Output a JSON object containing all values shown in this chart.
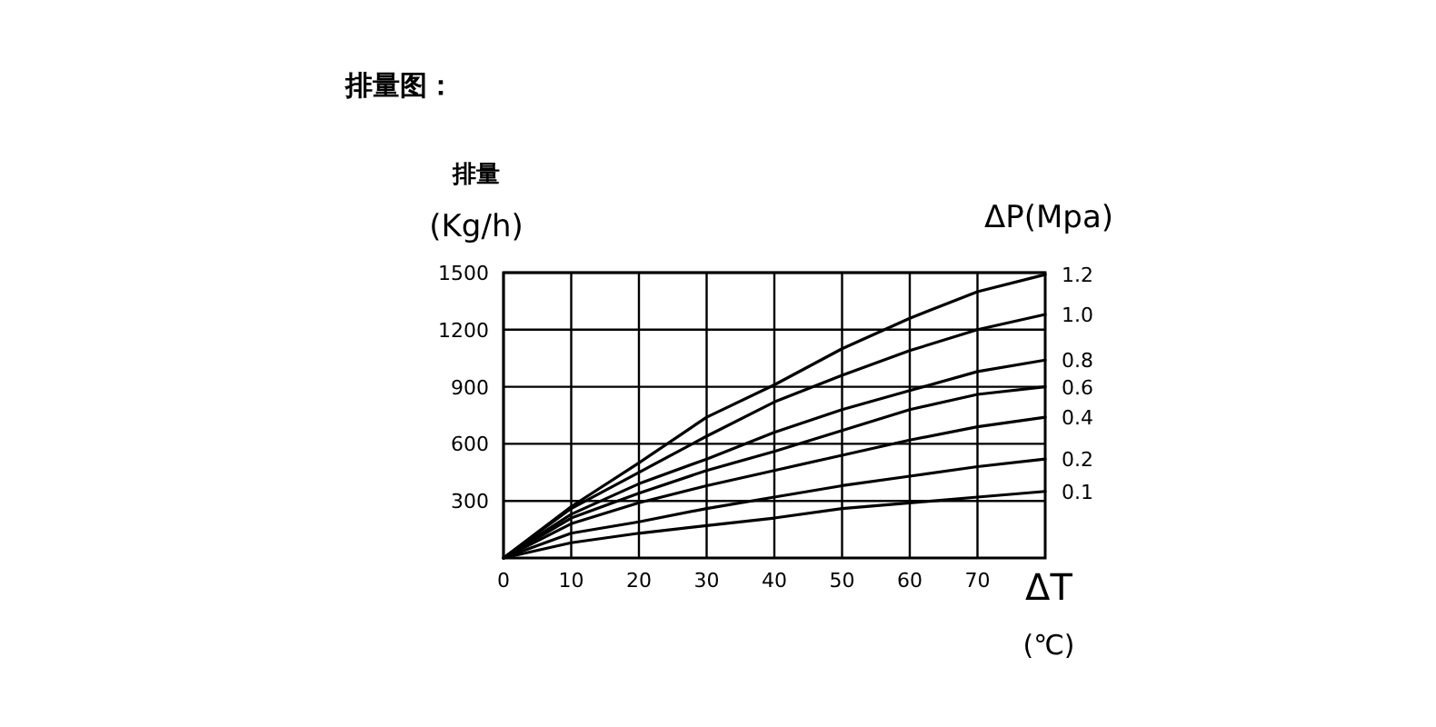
{
  "chart_data": {
    "type": "line",
    "title": "排量图：",
    "ylabel": "排量\n(Kg/h)",
    "xlabel": "ΔT\n(℃)",
    "legend_title": "ΔP(Mpa)",
    "x": [
      0,
      10,
      20,
      30,
      40,
      50,
      60,
      70,
      80
    ],
    "xlim": [
      0,
      80
    ],
    "xticks": [
      0,
      10,
      20,
      30,
      40,
      50,
      60,
      70
    ],
    "ylim": [
      0,
      1500
    ],
    "yticks": [
      300,
      600,
      900,
      1200,
      1500
    ],
    "grid": true,
    "marker": "none",
    "line_style": "solid",
    "series": [
      {
        "name": "1.2",
        "color": "#000000",
        "values": [
          0,
          270,
          500,
          740,
          910,
          1100,
          1260,
          1400,
          1490
        ]
      },
      {
        "name": "1.0",
        "color": "#000000",
        "values": [
          0,
          260,
          450,
          640,
          820,
          960,
          1090,
          1200,
          1280
        ]
      },
      {
        "name": "0.8",
        "color": "#000000",
        "values": [
          0,
          230,
          390,
          520,
          660,
          780,
          880,
          980,
          1040
        ]
      },
      {
        "name": "0.6",
        "color": "#000000",
        "values": [
          0,
          210,
          340,
          460,
          560,
          670,
          780,
          860,
          900
        ]
      },
      {
        "name": "0.4",
        "color": "#000000",
        "values": [
          0,
          180,
          290,
          380,
          460,
          540,
          620,
          690,
          740
        ]
      },
      {
        "name": "0.2",
        "color": "#000000",
        "values": [
          0,
          130,
          190,
          260,
          320,
          380,
          430,
          480,
          520
        ]
      },
      {
        "name": "0.1",
        "color": "#000000",
        "values": [
          0,
          80,
          130,
          170,
          210,
          260,
          290,
          320,
          350
        ]
      }
    ]
  }
}
